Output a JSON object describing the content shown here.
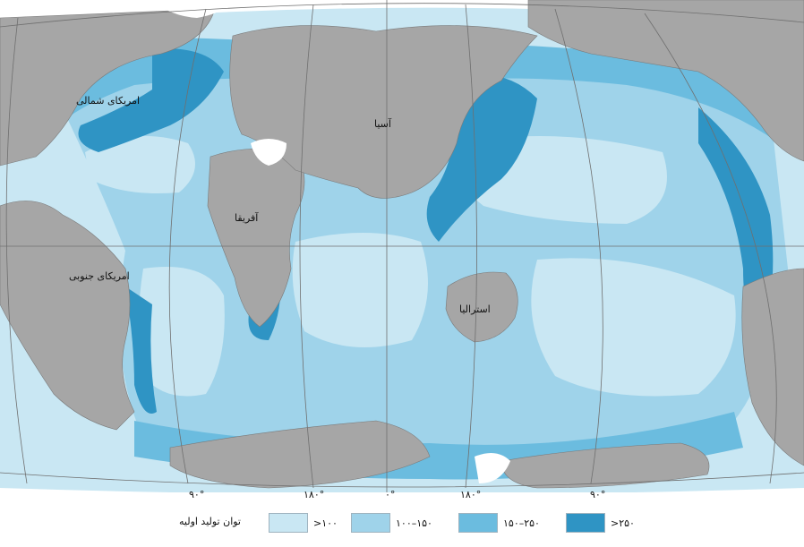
{
  "map": {
    "continents": {
      "north_america": "امریکای شمالی",
      "south_america": "امریکای جنوبی",
      "africa": "آفریقا",
      "asia": "آسیا",
      "australia": "استرالیا"
    },
    "longitude_labels": [
      "۹۰°",
      "۱۸۰°",
      "۰°",
      "۱۸۰°",
      "۹۰°"
    ]
  },
  "legend": {
    "title": "توان تولید اولیه",
    "items": [
      {
        "label": ">۱۰۰",
        "color": "#c9e7f3"
      },
      {
        "label": "۱۰۰–۱۵۰",
        "color": "#9fd3ea"
      },
      {
        "label": "۱۵۰–۲۵۰",
        "color": "#6bbcdf"
      },
      {
        "label": ">۲۵۰",
        "color": "#2f94c4"
      }
    ]
  },
  "colors": {
    "land": "#a6a6a6",
    "ocean_low": "#c9e7f3",
    "ocean_mid": "#9fd3ea",
    "ocean_high": "#6bbcdf",
    "ocean_very_high": "#2f94c4",
    "ice": "#ffffff"
  }
}
